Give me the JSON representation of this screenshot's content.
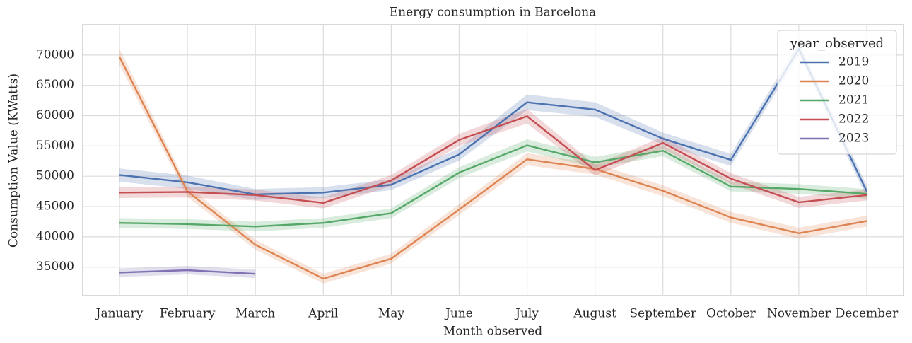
{
  "chart_data": {
    "type": "line",
    "title": "Energy consumption in Barcelona",
    "x_label": "Month observed",
    "y_label": "Consumption Value (KWatts)",
    "categories": [
      "January",
      "February",
      "March",
      "April",
      "May",
      "June",
      "July",
      "August",
      "September",
      "October",
      "November",
      "December"
    ],
    "series": [
      {
        "name": "2019",
        "color": "#4c72b0",
        "values": [
          50200,
          49000,
          47000,
          47300,
          48600,
          53600,
          62200,
          61000,
          56200,
          52700,
          71000,
          47500
        ],
        "ci": [
          1100,
          1100,
          900,
          900,
          900,
          1000,
          1300,
          1200,
          1000,
          1000,
          1000,
          1000
        ]
      },
      {
        "name": "2020",
        "color": "#dd8452",
        "values": [
          69700,
          47500,
          38700,
          33100,
          36400,
          44500,
          52800,
          51200,
          47600,
          43200,
          40600,
          42600
        ],
        "ci": [
          1300,
          900,
          800,
          800,
          800,
          900,
          1000,
          900,
          900,
          900,
          900,
          900
        ]
      },
      {
        "name": "2021",
        "color": "#55a868",
        "values": [
          42300,
          42100,
          41700,
          42300,
          43900,
          50600,
          55100,
          52300,
          54200,
          48300,
          47900,
          47100
        ],
        "ci": [
          800,
          800,
          800,
          800,
          800,
          900,
          1000,
          900,
          900,
          800,
          800,
          800
        ]
      },
      {
        "name": "2022",
        "color": "#c44e52",
        "values": [
          47300,
          47400,
          46900,
          45600,
          49300,
          56000,
          59900,
          51000,
          55500,
          49600,
          45700,
          46900
        ],
        "ci": [
          900,
          900,
          900,
          900,
          900,
          1000,
          1200,
          900,
          1000,
          900,
          900,
          900
        ]
      },
      {
        "name": "2023",
        "color": "#8172b3",
        "values": [
          34100,
          34500,
          33900,
          null,
          null,
          null,
          null,
          null,
          null,
          null,
          null,
          null
        ],
        "ci": [
          700,
          700,
          700,
          null,
          null,
          null,
          null,
          null,
          null,
          null,
          null,
          null
        ]
      }
    ],
    "legend_title": "year_observed",
    "legend_position": "upper right",
    "ylim": [
      30300,
      75000
    ],
    "yticks": [
      35000,
      40000,
      45000,
      50000,
      55000,
      60000,
      65000,
      70000
    ],
    "grid": true
  }
}
